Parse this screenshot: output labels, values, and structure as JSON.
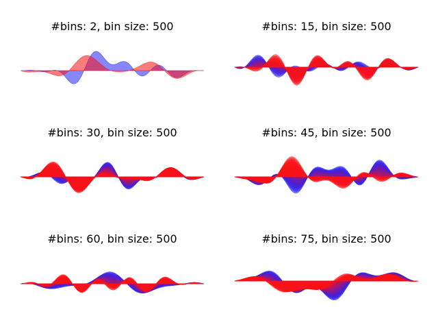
{
  "figure": {
    "background": "#ffffff",
    "color_start": "#2222ff",
    "color_end": "#ff1111"
  },
  "chart_data": [
    {
      "type": "area",
      "title": "#bins: 2, bin size: 500",
      "bins": 2,
      "bin_size": 500,
      "axes": "off",
      "grid": false
    },
    {
      "type": "area",
      "title": "#bins: 15, bin size: 500",
      "bins": 15,
      "bin_size": 500,
      "axes": "off",
      "grid": false
    },
    {
      "type": "area",
      "title": "#bins: 30, bin size: 500",
      "bins": 30,
      "bin_size": 500,
      "axes": "off",
      "grid": false
    },
    {
      "type": "area",
      "title": "#bins: 45, bin size: 500",
      "bins": 45,
      "bin_size": 500,
      "axes": "off",
      "grid": false
    },
    {
      "type": "area",
      "title": "#bins: 60, bin size: 500",
      "bins": 60,
      "bin_size": 500,
      "axes": "off",
      "grid": false
    },
    {
      "type": "area",
      "title": "#bins: 75, bin size: 500",
      "bins": 75,
      "bin_size": 500,
      "axes": "off",
      "grid": false
    }
  ]
}
